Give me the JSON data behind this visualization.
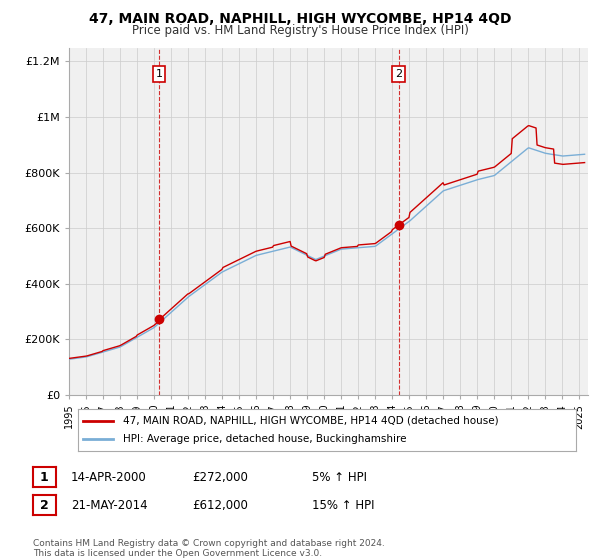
{
  "title": "47, MAIN ROAD, NAPHILL, HIGH WYCOMBE, HP14 4QD",
  "subtitle": "Price paid vs. HM Land Registry's House Price Index (HPI)",
  "legend_line1": "47, MAIN ROAD, NAPHILL, HIGH WYCOMBE, HP14 4QD (detached house)",
  "legend_line2": "HPI: Average price, detached house, Buckinghamshire",
  "annotation1_label": "1",
  "annotation1_date": "14-APR-2000",
  "annotation1_price": "£272,000",
  "annotation1_hpi": "5% ↑ HPI",
  "annotation2_label": "2",
  "annotation2_date": "21-MAY-2014",
  "annotation2_price": "£612,000",
  "annotation2_hpi": "15% ↑ HPI",
  "footer": "Contains HM Land Registry data © Crown copyright and database right 2024.\nThis data is licensed under the Open Government Licence v3.0.",
  "sale1_year": 2000.29,
  "sale1_price": 272000,
  "sale2_year": 2014.38,
  "sale2_price": 612000,
  "line_color_red": "#cc0000",
  "line_color_blue": "#7aaed6",
  "marker_color_red": "#cc0000",
  "vline_color": "#cc0000",
  "grid_color": "#cccccc",
  "bg_color": "#f0f0f0",
  "ylim": [
    0,
    1250000
  ],
  "xlim_start": 1995.0,
  "xlim_end": 2025.5,
  "yticks": [
    0,
    200000,
    400000,
    600000,
    800000,
    1000000,
    1200000
  ],
  "ylabels": [
    "£0",
    "£200K",
    "£400K",
    "£600K",
    "£800K",
    "£1M",
    "£1.2M"
  ]
}
